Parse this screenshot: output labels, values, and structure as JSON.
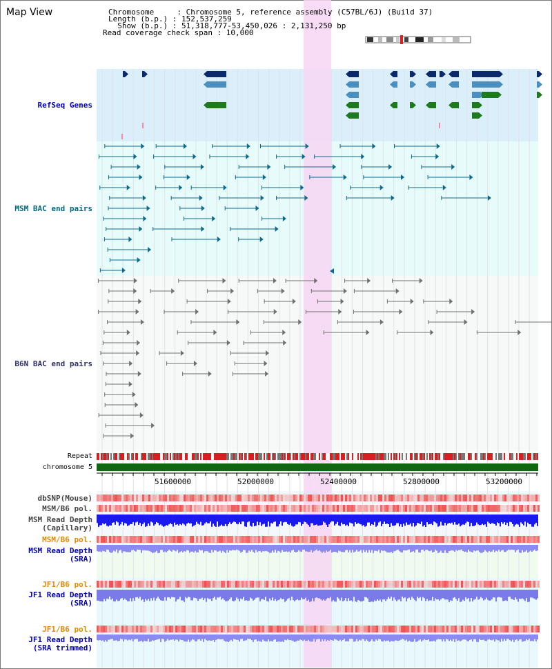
{
  "header": {
    "title": "Map View",
    "chromosome_line": "Chromosome     : Chromosome 5, reference assembly (C57BL/6J) (Build 37)",
    "length_line": "Length (b.p.) : 152,537,259",
    "show_line": "  Show (b.p.) : 51,318,777-53,450,026 : 2,131,250 bp",
    "coverage_line": "Read coverage check span : 10,000"
  },
  "tracks": {
    "refseq": {
      "label": "RefSeq Genes",
      "color": "#0000b0"
    },
    "msm_bac": {
      "label": "MSM BAC end pairs",
      "color": "#006a80"
    },
    "b6n_bac": {
      "label": "B6N BAC end pairs",
      "color": "#30306a"
    },
    "repeat": {
      "label": "Repeat"
    },
    "chromosome": {
      "label": "chromosome 5"
    },
    "dbsnp": {
      "label": "dbSNP(Mouse)"
    },
    "msm_b6_pol_1": {
      "label": "MSM/B6 pol."
    },
    "msm_read_depth_cap": {
      "label1": "MSM Read Depth",
      "label2": "(Capillary)"
    },
    "msm_b6_pol_2": {
      "label": "MSM/B6 pol."
    },
    "msm_read_depth_sra": {
      "label1": "MSM Read Depth",
      "label2": "(SRA)"
    },
    "jf1_b6_pol_1": {
      "label": "JF1/B6 pol."
    },
    "jf1_read_depth_sra": {
      "label1": "JF1 Read Depth",
      "label2": "(SRA)"
    },
    "jf1_b6_pol_2": {
      "label": "JF1/B6 pol."
    },
    "jf1_read_depth_trim": {
      "label1": "JF1 Read Depth",
      "label2": "(SRA trimmed)"
    }
  },
  "axis": {
    "ticks": [
      "51600000",
      "52000000",
      "52400000",
      "52800000",
      "53200000"
    ]
  },
  "colors": {
    "refseq_bg": "#daeffa",
    "msm_bac_bg": "#e8fbfb",
    "b6n_bac_bg": "#f7f8f8",
    "highlight": "#f7d6f3",
    "gene_dark": "#0b2a6b",
    "gene_mid": "#4a8fc0",
    "gene_green": "#1f7a1f",
    "msm_line": "#0e6a8a",
    "b6n_line": "#707070",
    "chrom_bar": "#116611"
  }
}
